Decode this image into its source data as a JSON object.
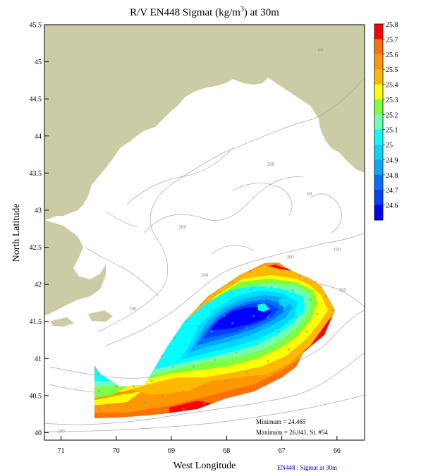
{
  "title": "R/V EN448 Sigmat (kg/m³) at 30m",
  "title_parts": {
    "pre": "R/V EN448 Sigmat (kg/m",
    "sup": "3",
    "post": ") at 30m"
  },
  "map": {
    "xlabel": "West Longitude",
    "ylabel": "North Latitude",
    "x_ticks": [
      "71",
      "70",
      "69",
      "68",
      "67",
      "66"
    ],
    "y_ticks": [
      "45.5",
      "45",
      "44.5",
      "44",
      "43.5",
      "43",
      "42.5",
      "42",
      "41.5",
      "41",
      "40.5",
      "40"
    ],
    "x_range": [
      71.3,
      65.5
    ],
    "y_range": [
      39.9,
      45.5
    ],
    "land_color": "#cbcba6",
    "bathymetry_labels": [
      {
        "text": "60",
        "lon": 66.3,
        "lat": 45.14
      },
      {
        "text": "200",
        "lon": 67.2,
        "lat": 43.6
      },
      {
        "text": "60",
        "lon": 66.5,
        "lat": 43.2
      },
      {
        "text": "200",
        "lon": 68.8,
        "lat": 42.75
      },
      {
        "text": "100",
        "lon": 66.0,
        "lat": 42.45
      },
      {
        "text": "300",
        "lon": 66.85,
        "lat": 42.35
      },
      {
        "text": "200",
        "lon": 68.4,
        "lat": 42.1
      },
      {
        "text": "300",
        "lon": 65.9,
        "lat": 41.9
      },
      {
        "text": "100",
        "lon": 69.7,
        "lat": 41.65
      },
      {
        "text": "60",
        "lon": 67.95,
        "lat": 40.8
      },
      {
        "text": "60",
        "lon": 70.2,
        "lat": 40.6
      },
      {
        "text": "100",
        "lon": 68.4,
        "lat": 40.45
      },
      {
        "text": "200",
        "lon": 71.0,
        "lat": 40.0
      }
    ]
  },
  "colorbar": {
    "levels": [
      "25.8",
      "25.7",
      "25.6",
      "25.5",
      "25.4",
      "25.3",
      "25.2",
      "25.1",
      "25",
      "24.9",
      "24.8",
      "24.7",
      "24.6"
    ],
    "colors": [
      "#ff0000",
      "#ff7000",
      "#ff9800",
      "#ffb800",
      "#ffff00",
      "#80ff40",
      "#70ffb0",
      "#00ffff",
      "#00d8ff",
      "#00aaff",
      "#0070ff",
      "#0040ff",
      "#0000ff"
    ]
  },
  "stats": {
    "minimum": "Minimum = 24.465",
    "maximum": "Maximum = 26.041, St. #54"
  },
  "credit": "EN448 : Sigmat at 30m"
}
